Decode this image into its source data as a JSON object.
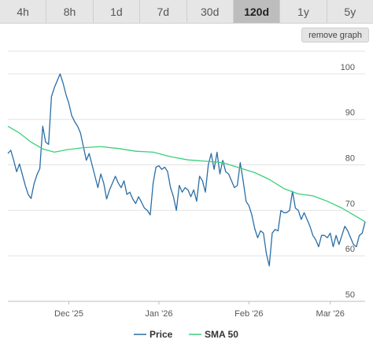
{
  "tabs": [
    {
      "label": "4h",
      "active": false
    },
    {
      "label": "8h",
      "active": false
    },
    {
      "label": "1d",
      "active": false
    },
    {
      "label": "7d",
      "active": false
    },
    {
      "label": "30d",
      "active": false
    },
    {
      "label": "120d",
      "active": true
    },
    {
      "label": "1y",
      "active": false
    },
    {
      "label": "5y",
      "active": false
    }
  ],
  "remove_button_label": "remove graph",
  "chart_data": {
    "type": "line",
    "ylim": [
      50,
      105
    ],
    "yticks": [
      50,
      60,
      70,
      80,
      90,
      100
    ],
    "xlim": [
      "2025-11-10",
      "2026-03-13"
    ],
    "xticks": [
      {
        "date": "2025-12-01",
        "label": "Dec '25"
      },
      {
        "date": "2026-01-01",
        "label": "Jan '26"
      },
      {
        "date": "2026-02-01",
        "label": "Feb '26"
      },
      {
        "date": "2026-03-01",
        "label": "Mar '26"
      }
    ],
    "grid": true,
    "legend": "bottom",
    "series": [
      {
        "name": "Price",
        "color": "#2a6ea6",
        "points": [
          [
            "2025-11-10",
            82.5
          ],
          [
            "2025-11-11",
            83.2
          ],
          [
            "2025-11-12",
            81.0
          ],
          [
            "2025-11-13",
            78.5
          ],
          [
            "2025-11-14",
            80.2
          ],
          [
            "2025-11-15",
            77.8
          ],
          [
            "2025-11-16",
            75.5
          ],
          [
            "2025-11-17",
            73.5
          ],
          [
            "2025-11-18",
            72.6
          ],
          [
            "2025-11-19",
            75.8
          ],
          [
            "2025-11-20",
            77.8
          ],
          [
            "2025-11-21",
            79.2
          ],
          [
            "2025-11-22",
            88.5
          ],
          [
            "2025-11-23",
            85.0
          ],
          [
            "2025-11-24",
            84.5
          ],
          [
            "2025-11-25",
            95.0
          ],
          [
            "2025-11-26",
            97.0
          ],
          [
            "2025-11-27",
            98.5
          ],
          [
            "2025-11-28",
            100.0
          ],
          [
            "2025-11-29",
            98.0
          ],
          [
            "2025-11-30",
            95.5
          ],
          [
            "2025-12-01",
            93.5
          ],
          [
            "2025-12-02",
            90.8
          ],
          [
            "2025-12-03",
            89.5
          ],
          [
            "2025-12-04",
            88.5
          ],
          [
            "2025-12-05",
            87.0
          ],
          [
            "2025-12-06",
            84.0
          ],
          [
            "2025-12-07",
            81.0
          ],
          [
            "2025-12-08",
            82.5
          ],
          [
            "2025-12-09",
            80.0
          ],
          [
            "2025-12-10",
            77.5
          ],
          [
            "2025-12-11",
            75.0
          ],
          [
            "2025-12-12",
            78.0
          ],
          [
            "2025-12-13",
            76.0
          ],
          [
            "2025-12-14",
            72.5
          ],
          [
            "2025-12-15",
            74.5
          ],
          [
            "2025-12-16",
            76.0
          ],
          [
            "2025-12-17",
            77.5
          ],
          [
            "2025-12-18",
            76.0
          ],
          [
            "2025-12-19",
            75.0
          ],
          [
            "2025-12-20",
            76.5
          ],
          [
            "2025-12-21",
            73.5
          ],
          [
            "2025-12-22",
            74.0
          ],
          [
            "2025-12-23",
            72.5
          ],
          [
            "2025-12-24",
            71.5
          ],
          [
            "2025-12-25",
            73.0
          ],
          [
            "2025-12-26",
            71.8
          ],
          [
            "2025-12-27",
            70.5
          ],
          [
            "2025-12-28",
            70.0
          ],
          [
            "2025-12-29",
            69.0
          ],
          [
            "2025-12-30",
            76.0
          ],
          [
            "2025-12-31",
            79.5
          ],
          [
            "2026-01-01",
            79.8
          ],
          [
            "2026-01-02",
            79.0
          ],
          [
            "2026-01-03",
            79.5
          ],
          [
            "2026-01-04",
            78.5
          ],
          [
            "2026-01-05",
            75.0
          ],
          [
            "2026-01-06",
            73.0
          ],
          [
            "2026-01-07",
            70.0
          ],
          [
            "2026-01-08",
            75.5
          ],
          [
            "2026-01-09",
            74.0
          ],
          [
            "2026-01-10",
            75.0
          ],
          [
            "2026-01-11",
            74.5
          ],
          [
            "2026-01-12",
            73.0
          ],
          [
            "2026-01-13",
            74.5
          ],
          [
            "2026-01-14",
            72.0
          ],
          [
            "2026-01-15",
            77.5
          ],
          [
            "2026-01-16",
            76.5
          ],
          [
            "2026-01-17",
            74.0
          ],
          [
            "2026-01-18",
            80.0
          ],
          [
            "2026-01-19",
            82.5
          ],
          [
            "2026-01-20",
            79.0
          ],
          [
            "2026-01-21",
            82.8
          ],
          [
            "2026-01-22",
            78.0
          ],
          [
            "2026-01-23",
            81.0
          ],
          [
            "2026-01-24",
            78.5
          ],
          [
            "2026-01-25",
            78.0
          ],
          [
            "2026-01-26",
            76.5
          ],
          [
            "2026-01-27",
            75.0
          ],
          [
            "2026-01-28",
            75.5
          ],
          [
            "2026-01-29",
            80.5
          ],
          [
            "2026-01-30",
            76.5
          ],
          [
            "2026-01-31",
            72.0
          ],
          [
            "2026-02-01",
            71.0
          ],
          [
            "2026-02-02",
            69.0
          ],
          [
            "2026-02-03",
            66.0
          ],
          [
            "2026-02-04",
            64.0
          ],
          [
            "2026-02-05",
            65.5
          ],
          [
            "2026-02-06",
            65.0
          ],
          [
            "2026-02-07",
            60.5
          ],
          [
            "2026-02-08",
            57.8
          ],
          [
            "2026-02-09",
            65.0
          ],
          [
            "2026-02-10",
            65.8
          ],
          [
            "2026-02-11",
            65.5
          ],
          [
            "2026-02-12",
            70.0
          ],
          [
            "2026-02-13",
            69.5
          ],
          [
            "2026-02-14",
            69.5
          ],
          [
            "2026-02-15",
            70.0
          ],
          [
            "2026-02-16",
            74.2
          ],
          [
            "2026-02-17",
            70.5
          ],
          [
            "2026-02-18",
            70.0
          ],
          [
            "2026-02-19",
            68.0
          ],
          [
            "2026-02-20",
            69.5
          ],
          [
            "2026-02-21",
            68.0
          ],
          [
            "2026-02-22",
            66.5
          ],
          [
            "2026-02-23",
            64.5
          ],
          [
            "2026-02-24",
            63.5
          ],
          [
            "2026-02-25",
            62.0
          ],
          [
            "2026-02-26",
            64.5
          ],
          [
            "2026-02-27",
            64.5
          ],
          [
            "2026-02-28",
            64.0
          ],
          [
            "2026-03-01",
            65.0
          ],
          [
            "2026-03-02",
            62.0
          ],
          [
            "2026-03-03",
            64.5
          ],
          [
            "2026-03-04",
            62.5
          ],
          [
            "2026-03-05",
            64.5
          ],
          [
            "2026-03-06",
            66.5
          ],
          [
            "2026-03-07",
            65.5
          ],
          [
            "2026-03-08",
            64.0
          ],
          [
            "2026-03-09",
            62.5
          ],
          [
            "2026-03-10",
            62.0
          ],
          [
            "2026-03-11",
            64.5
          ],
          [
            "2026-03-12",
            65.0
          ],
          [
            "2026-03-13",
            67.5
          ]
        ]
      },
      {
        "name": "SMA 50",
        "color": "#3ccf7a",
        "points": [
          [
            "2025-11-10",
            88.5
          ],
          [
            "2025-11-14",
            87.0
          ],
          [
            "2025-11-18",
            85.0
          ],
          [
            "2025-11-22",
            83.5
          ],
          [
            "2025-11-26",
            82.8
          ],
          [
            "2025-11-30",
            83.3
          ],
          [
            "2025-12-06",
            83.8
          ],
          [
            "2025-12-12",
            84.0
          ],
          [
            "2025-12-18",
            83.6
          ],
          [
            "2025-12-24",
            83.0
          ],
          [
            "2025-12-30",
            82.8
          ],
          [
            "2026-01-05",
            81.8
          ],
          [
            "2026-01-11",
            81.1
          ],
          [
            "2026-01-17",
            80.8
          ],
          [
            "2026-01-23",
            80.5
          ],
          [
            "2026-01-29",
            79.3
          ],
          [
            "2026-02-03",
            78.3
          ],
          [
            "2026-02-08",
            76.8
          ],
          [
            "2026-02-13",
            74.8
          ],
          [
            "2026-02-18",
            73.6
          ],
          [
            "2026-02-23",
            73.2
          ],
          [
            "2026-02-28",
            72.0
          ],
          [
            "2026-03-05",
            70.5
          ],
          [
            "2026-03-09",
            69.0
          ],
          [
            "2026-03-13",
            67.5
          ]
        ]
      }
    ]
  }
}
